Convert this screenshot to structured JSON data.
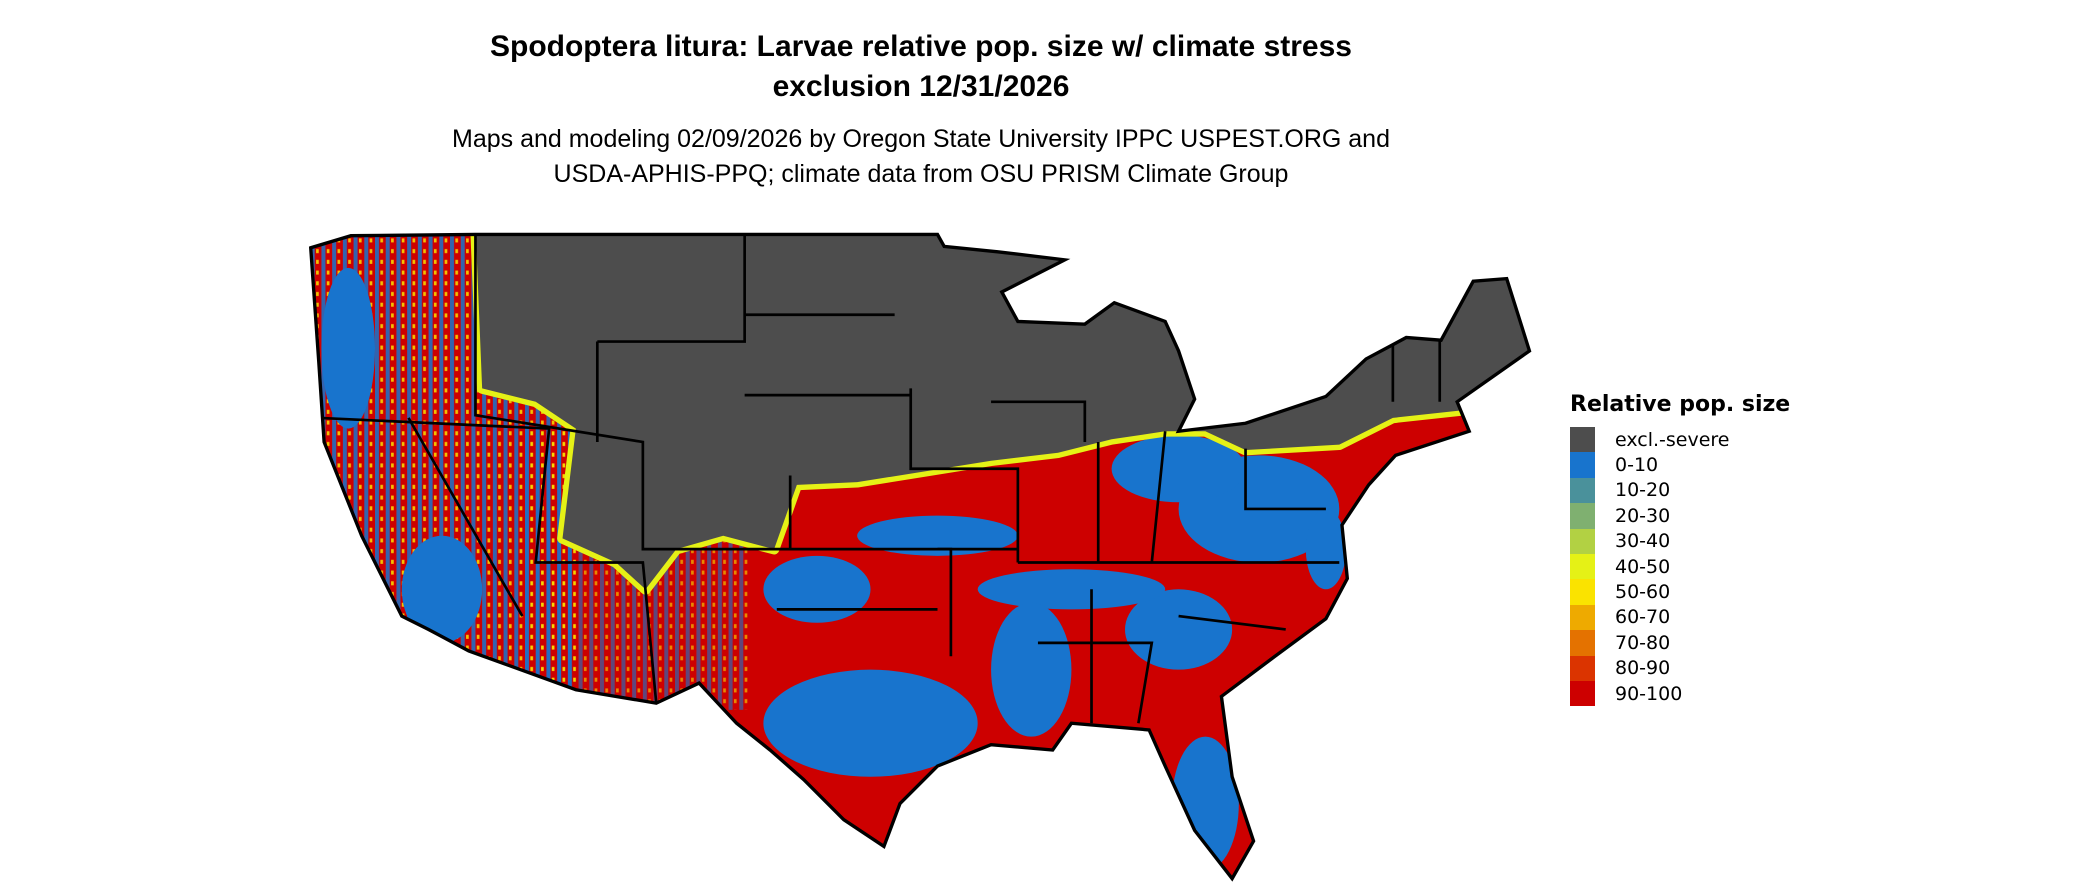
{
  "title": {
    "line1": "Spodoptera litura: Larvae relative pop. size w/ climate stress",
    "line2": "exclusion 12/31/2026"
  },
  "subtitle": {
    "line1": "Maps and modeling 02/09/2026 by Oregon State University IPPC USPEST.ORG and",
    "line2": "USDA-APHIS-PPQ; climate data from OSU PRISM Climate Group"
  },
  "legend": {
    "title": "Relative pop. size",
    "items": [
      {
        "label": "excl.-severe",
        "color": "#4d4d4d"
      },
      {
        "label": "0-10",
        "color": "#1874cd"
      },
      {
        "label": "10-20",
        "color": "#4a919b"
      },
      {
        "label": "20-30",
        "color": "#7fb070"
      },
      {
        "label": "30-40",
        "color": "#b2d143"
      },
      {
        "label": "40-50",
        "color": "#e5f116"
      },
      {
        "label": "50-60",
        "color": "#fae300"
      },
      {
        "label": "60-70",
        "color": "#eeaa00"
      },
      {
        "label": "70-80",
        "color": "#e47200"
      },
      {
        "label": "80-90",
        "color": "#db3400"
      },
      {
        "label": "90-100",
        "color": "#cd0000"
      }
    ]
  }
}
